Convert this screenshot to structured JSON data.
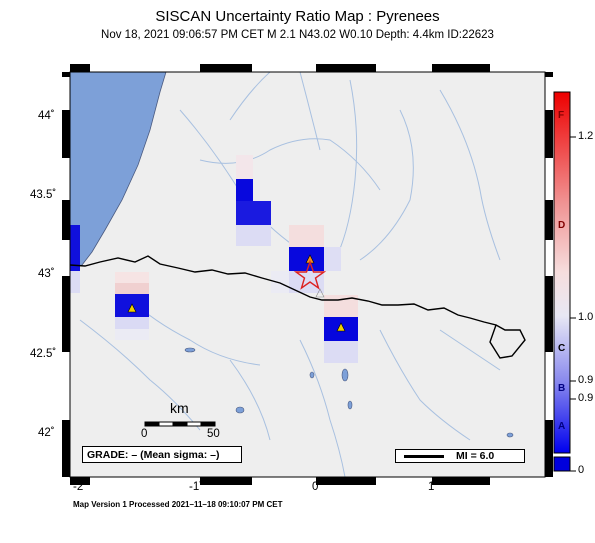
{
  "header": {
    "title": "SISCAN Uncertainty Ratio Map : Pyrenees",
    "subtitle": "Nov 18, 2021 09:06:57 PM CET   M 2.1   N43.02 W0.10   Depth: 4.4km   ID:22623"
  },
  "map": {
    "lat_labels": [
      "44˚",
      "43.5˚",
      "43˚",
      "42.5˚",
      "42˚"
    ],
    "lon_labels": [
      "-2˚",
      "-1˚",
      "0˚",
      "1˚"
    ],
    "scale_bar": {
      "unit": "km",
      "start": "0",
      "end": "50"
    },
    "grade_text": "GRADE: – (Mean sigma: –)",
    "mi_text": "MI = 6.0",
    "colors": {
      "land": "#eeeeee",
      "sea": "#7da0d8",
      "river": "#a8c0e0",
      "border": "#000000",
      "epicenter": "#dd2222",
      "station": "#f0d000"
    }
  },
  "colorbar": {
    "letters": [
      "F",
      "D",
      "C",
      "B",
      "A"
    ],
    "values": [
      "1.2",
      "1.0",
      "0.9",
      "0.9",
      "0"
    ]
  },
  "footer": {
    "text": "Map Version 1 Processed 2021–11–18 09:10:07 PM CET"
  }
}
